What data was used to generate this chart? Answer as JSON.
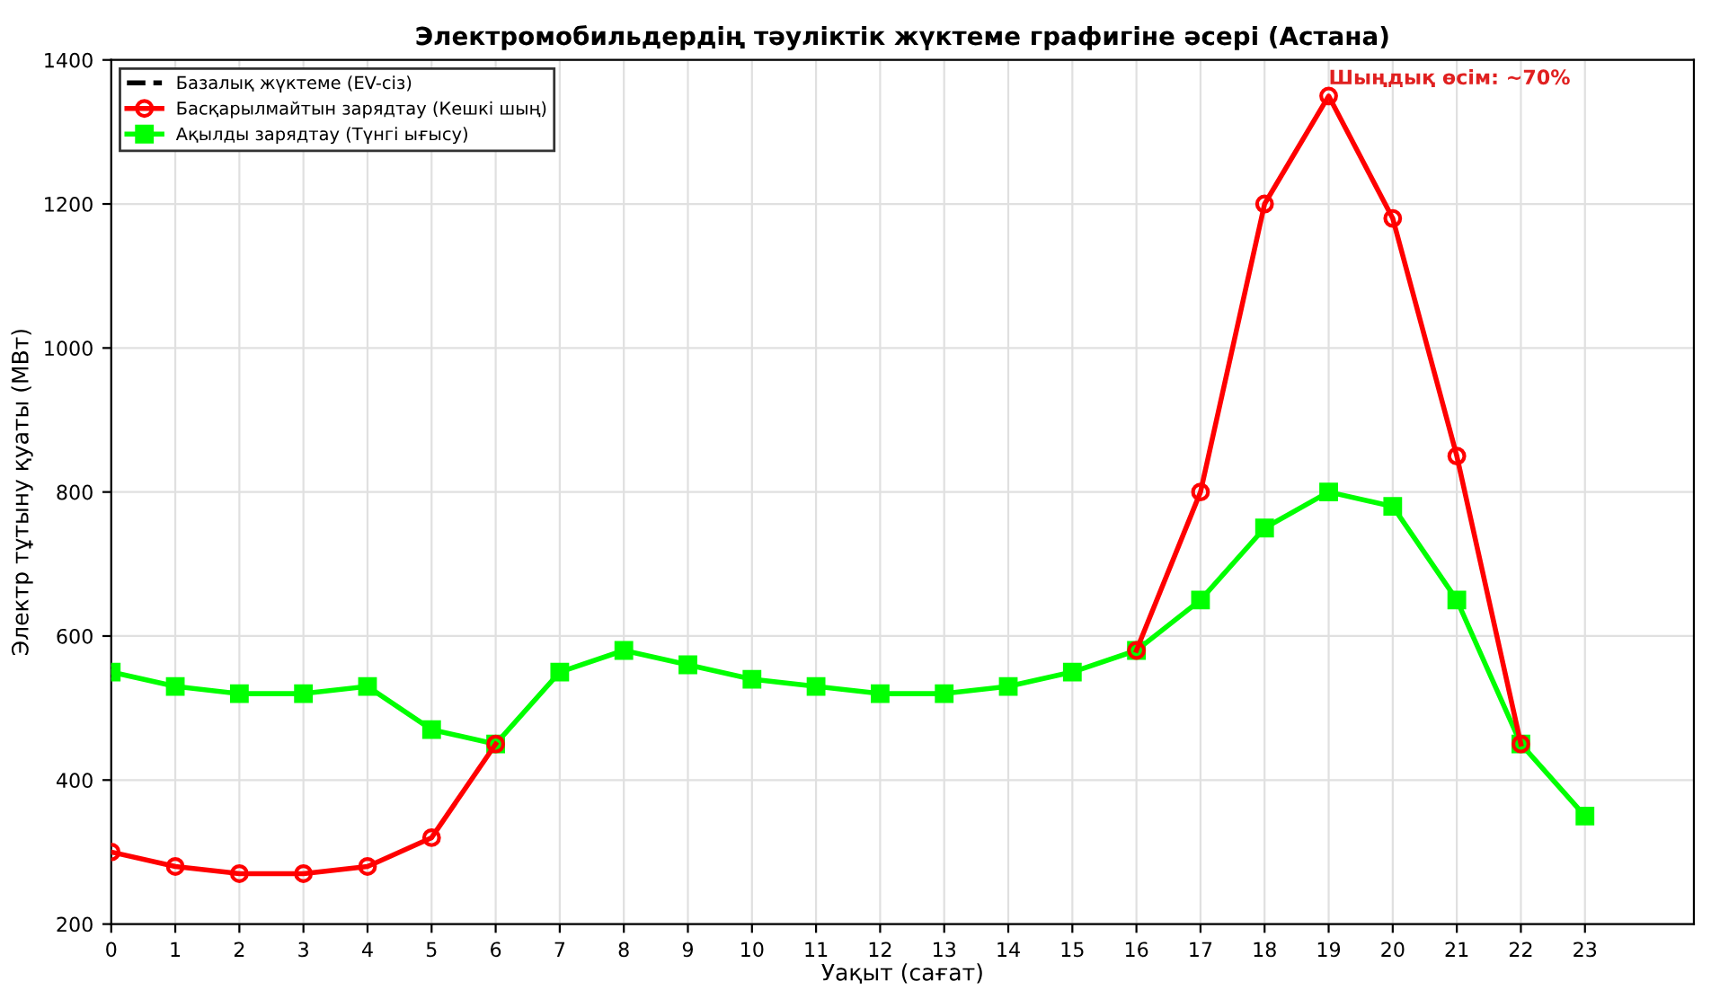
{
  "chart_data": {
    "type": "line",
    "title": "Электромобильдердің тәуліктік жүктеме графигіне әсері (Астана)",
    "xlabel": "Уақыт (сағат)",
    "ylabel": "Электр тұтыну қуаты (МВт)",
    "x": [
      0,
      1,
      2,
      3,
      4,
      5,
      6,
      7,
      8,
      9,
      10,
      11,
      12,
      13,
      14,
      15,
      16,
      17,
      18,
      19,
      20,
      21,
      22,
      23
    ],
    "series": [
      {
        "name": "Базалық жүктеме (EV-сіз)",
        "color": "#000000",
        "line_style": "dashed",
        "marker": "none",
        "values": [
          null,
          null,
          null,
          null,
          null,
          null,
          null,
          null,
          null,
          null,
          null,
          null,
          null,
          null,
          null,
          null,
          null,
          null,
          null,
          null,
          null,
          null,
          null,
          null
        ]
      },
      {
        "name": "Басқарылмайтын зарядтау (Кешкі шың)",
        "color": "#ff0000",
        "line_style": "solid",
        "marker": "circle",
        "values": [
          300,
          280,
          270,
          270,
          280,
          320,
          450,
          null,
          null,
          null,
          null,
          null,
          null,
          null,
          null,
          null,
          580,
          800,
          1200,
          1350,
          1180,
          850,
          450,
          null
        ]
      },
      {
        "name": "Ақылды зарядтау (Түнгі ығысу)",
        "color": "#00ff00",
        "line_style": "solid",
        "marker": "square",
        "values": [
          550,
          530,
          520,
          520,
          530,
          470,
          450,
          550,
          580,
          560,
          540,
          530,
          520,
          520,
          530,
          550,
          580,
          650,
          750,
          800,
          780,
          650,
          450,
          350
        ]
      }
    ],
    "annotations": [
      {
        "text": "Шыңдық өсім: ~70%",
        "x": 19,
        "y": 1350
      }
    ],
    "xlim": [
      0,
      24.7
    ],
    "xticks": [
      0,
      1,
      2,
      3,
      4,
      5,
      6,
      7,
      8,
      9,
      10,
      11,
      12,
      13,
      14,
      15,
      16,
      17,
      18,
      19,
      20,
      21,
      22,
      23
    ],
    "ylim": [
      200,
      1400
    ],
    "yticks": [
      200,
      400,
      600,
      800,
      1000,
      1200,
      1400
    ],
    "grid": true,
    "legend": "top left"
  }
}
